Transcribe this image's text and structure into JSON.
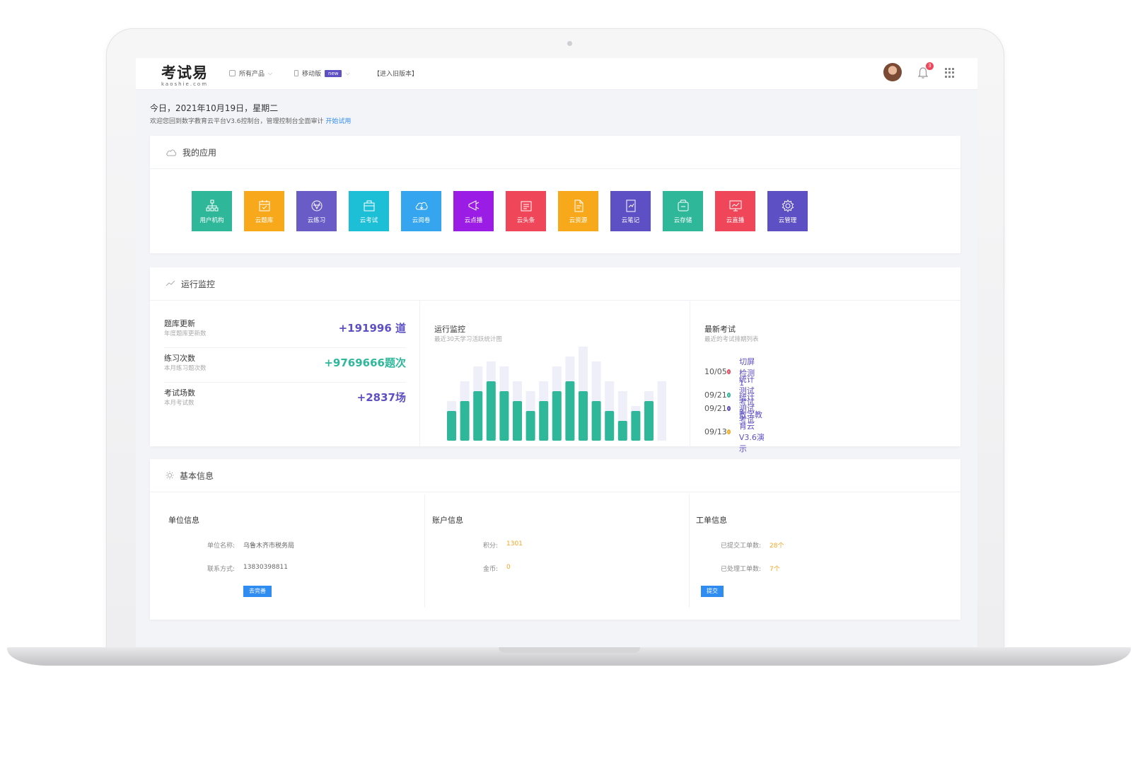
{
  "header": {
    "logo_text": "考试易",
    "logo_sub": "kaoshie.com",
    "nav": [
      {
        "label": "所有产品"
      },
      {
        "label": "移动版",
        "badge": "new"
      },
      {
        "label": "【进入旧版本】"
      }
    ],
    "notification_count": "3"
  },
  "greeting": {
    "date_line": "今日，2021年10月19日，星期二",
    "welcome": "欢迎您回到数字教育云平台V3.6控制台，管理控制台全面审计",
    "link": "开始试用"
  },
  "apps_panel": {
    "title": "我的应用",
    "apps": [
      {
        "label": "用户机构",
        "color": "#2fb79a",
        "icon": "org-icon"
      },
      {
        "label": "云题库",
        "color": "#f8a91b",
        "icon": "calendar-icon"
      },
      {
        "label": "云练习",
        "color": "#6a5cc7",
        "icon": "globe-icon"
      },
      {
        "label": "云考试",
        "color": "#1dbfd6",
        "icon": "briefcase-icon"
      },
      {
        "label": "云阅卷",
        "color": "#36a5f0",
        "icon": "cloud-icon"
      },
      {
        "label": "云点播",
        "color": "#9b1de5",
        "icon": "megaphone-icon"
      },
      {
        "label": "云头条",
        "color": "#f0465a",
        "icon": "news-icon"
      },
      {
        "label": "云资源",
        "color": "#f8a91b",
        "icon": "document-icon"
      },
      {
        "label": "云笔记",
        "color": "#5d4fc4",
        "icon": "note-icon"
      },
      {
        "label": "云存储",
        "color": "#2fb79a",
        "icon": "storage-icon"
      },
      {
        "label": "云直播",
        "color": "#f0465a",
        "icon": "screen-icon"
      },
      {
        "label": "云管理",
        "color": "#5d4fc4",
        "icon": "gear-icon"
      }
    ]
  },
  "monitor_panel": {
    "title": "运行监控",
    "stats": [
      {
        "title": "题库更新",
        "sub": "年度题库更新数",
        "value": "+191996 道",
        "color": "#5d4fc4"
      },
      {
        "title": "练习次数",
        "sub": "本月练习题次数",
        "value": "+9769666题次",
        "color": "#2fb79a"
      },
      {
        "title": "考试场数",
        "sub": "本月考试数",
        "value": "+2837场",
        "color": "#5d4fc4"
      }
    ],
    "chart_title": "运行监控",
    "chart_sub": "最近30天学习活跃统计图",
    "exams_title": "最新考试",
    "exams_sub": "最近的考试排期列表",
    "exams": [
      {
        "date": "10/05",
        "name": "切屏检测1",
        "color": "#f0465a"
      },
      {
        "date": "09/21",
        "name": "统计测试考试3",
        "color": "#2fb79a"
      },
      {
        "date": "09/21",
        "name": "统计测试考试",
        "color": "#5d4fc4"
      },
      {
        "date": "09/13",
        "name": "数字教育云V3.6演示",
        "color": "#f8a91b"
      }
    ]
  },
  "chart_data": {
    "type": "bar",
    "series": [
      {
        "values": [
          3,
          4,
          5,
          6,
          5,
          4,
          3,
          4,
          5,
          6,
          5,
          4,
          3,
          2,
          3,
          4
        ]
      },
      {
        "values": [
          4,
          6,
          7.5,
          8,
          7.5,
          6,
          5,
          6,
          7.5,
          8.5,
          9.5,
          8,
          6,
          5,
          3.5,
          5,
          6
        ]
      }
    ],
    "ylim": [
      0,
      10
    ]
  },
  "info_panel": {
    "title": "基本信息",
    "unit": {
      "title": "单位信息",
      "rows": [
        {
          "k": "单位名称:",
          "v": "乌鲁木齐市税务局"
        },
        {
          "k": "联系方式:",
          "v": "13830398811"
        }
      ],
      "button": "去完善"
    },
    "account": {
      "title": "账户信息",
      "rows": [
        {
          "k": "积分:",
          "v": "1301"
        },
        {
          "k": "金币:",
          "v": "0"
        }
      ]
    },
    "ticket": {
      "title": "工单信息",
      "rows": [
        {
          "k": "已提交工单数:",
          "v": "28个"
        },
        {
          "k": "已处理工单数:",
          "v": "7个"
        }
      ],
      "button": "提交"
    }
  }
}
